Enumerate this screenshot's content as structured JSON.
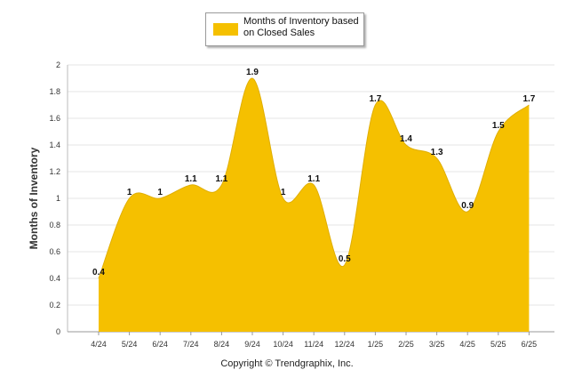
{
  "chart_data": {
    "type": "area",
    "categories": [
      "4/24",
      "5/24",
      "6/24",
      "7/24",
      "8/24",
      "9/24",
      "10/24",
      "11/24",
      "12/24",
      "1/25",
      "2/25",
      "3/25",
      "4/25",
      "5/25",
      "6/25"
    ],
    "series": [
      {
        "name": "Months of Inventory based on Closed Sales",
        "values": [
          0.4,
          1,
          1,
          1.1,
          1.1,
          1.9,
          1,
          1.1,
          0.5,
          1.7,
          1.4,
          1.3,
          0.9,
          1.5,
          1.7
        ]
      }
    ],
    "data_labels": [
      "0.4",
      "1",
      "1",
      "1.1",
      "1.1",
      "1.9",
      "1",
      "1.1",
      "0.5",
      "1.7",
      "1.4",
      "1.3",
      "0.9",
      "1.5",
      "1.7"
    ],
    "ylabel": "Months of Inventory",
    "xlabel": "",
    "ylim": [
      0,
      2
    ],
    "yticks": [
      "0",
      "0.2",
      "0.4",
      "0.6",
      "0.8",
      "1",
      "1.2",
      "1.4",
      "1.6",
      "1.8",
      "2"
    ],
    "grid": true,
    "legend_position": "top-center",
    "color": "#F5C000"
  },
  "footer": {
    "copyright": "Copyright © Trendgraphix, Inc."
  }
}
